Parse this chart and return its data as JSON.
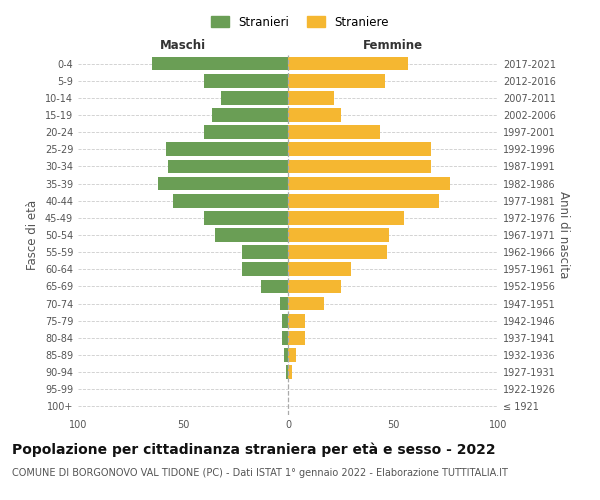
{
  "age_groups": [
    "100+",
    "95-99",
    "90-94",
    "85-89",
    "80-84",
    "75-79",
    "70-74",
    "65-69",
    "60-64",
    "55-59",
    "50-54",
    "45-49",
    "40-44",
    "35-39",
    "30-34",
    "25-29",
    "20-24",
    "15-19",
    "10-14",
    "5-9",
    "0-4"
  ],
  "birth_years": [
    "≤ 1921",
    "1922-1926",
    "1927-1931",
    "1932-1936",
    "1937-1941",
    "1942-1946",
    "1947-1951",
    "1952-1956",
    "1957-1961",
    "1962-1966",
    "1967-1971",
    "1972-1976",
    "1977-1981",
    "1982-1986",
    "1987-1991",
    "1992-1996",
    "1997-2001",
    "2002-2006",
    "2007-2011",
    "2012-2016",
    "2017-2021"
  ],
  "maschi": [
    0,
    0,
    1,
    2,
    3,
    3,
    4,
    13,
    22,
    22,
    35,
    40,
    55,
    62,
    57,
    58,
    40,
    36,
    32,
    40,
    65
  ],
  "femmine": [
    0,
    0,
    2,
    4,
    8,
    8,
    17,
    25,
    30,
    47,
    48,
    55,
    72,
    77,
    68,
    68,
    44,
    25,
    22,
    46,
    57
  ],
  "color_maschi": "#6a9e55",
  "color_femmine": "#f5b731",
  "title": "Popolazione per cittadinanza straniera per età e sesso - 2022",
  "subtitle": "COMUNE DI BORGONOVO VAL TIDONE (PC) - Dati ISTAT 1° gennaio 2022 - Elaborazione TUTTITALIA.IT",
  "xlabel_left": "Maschi",
  "xlabel_right": "Femmine",
  "ylabel_left": "Fasce di età",
  "ylabel_right": "Anni di nascita",
  "legend_maschi": "Stranieri",
  "legend_femmine": "Straniere",
  "xlim": 100,
  "background_color": "#ffffff",
  "grid_color": "#cccccc",
  "title_fontsize": 10,
  "subtitle_fontsize": 7,
  "label_fontsize": 8.5,
  "tick_fontsize": 7,
  "dashed_center_color": "#aaaaaa"
}
